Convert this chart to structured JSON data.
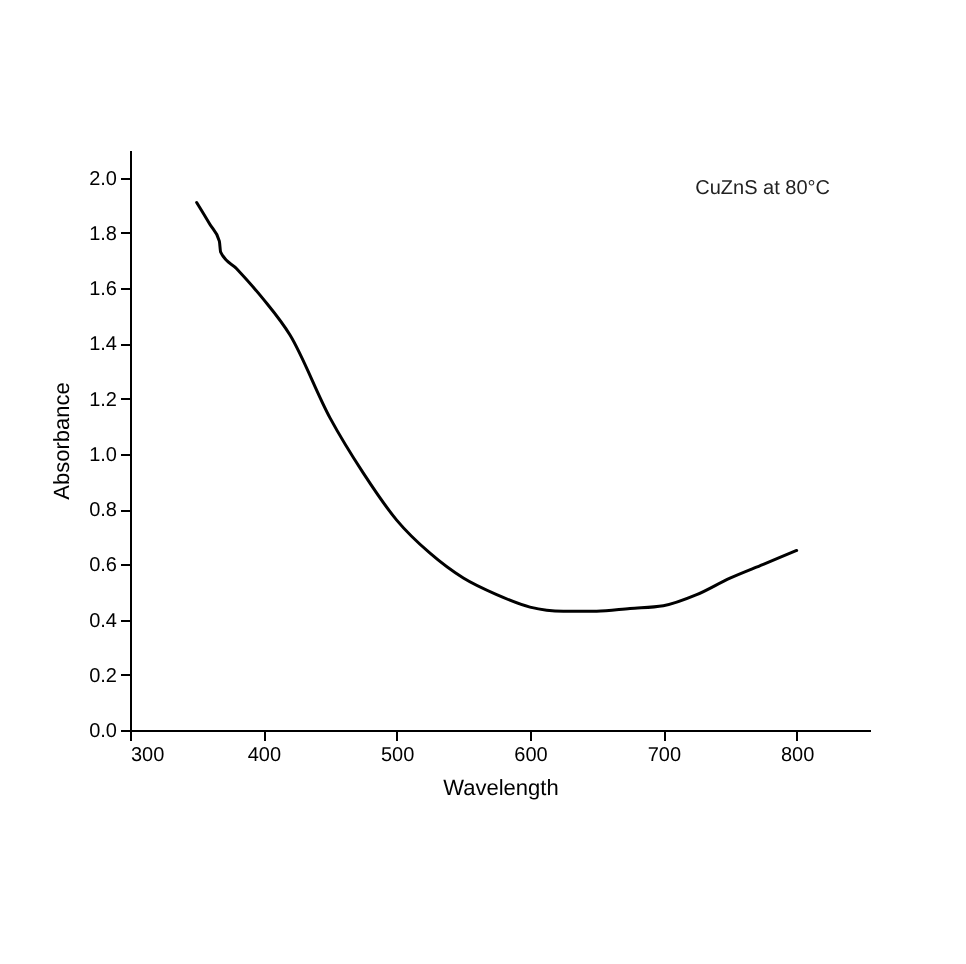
{
  "chart_data": {
    "type": "line",
    "xlabel": "Wavelength",
    "ylabel": "Absorbance",
    "annotations": [
      "CuZnS at 80°C"
    ],
    "x": [
      350,
      360,
      367,
      368,
      380,
      400,
      420,
      450,
      475,
      500,
      525,
      550,
      575,
      600,
      625,
      650,
      675,
      700,
      725,
      750,
      775,
      800
    ],
    "series": [
      {
        "color": "#000000",
        "values": [
          1.91,
          1.83,
          1.77,
          1.73,
          1.67,
          1.56,
          1.43,
          1.13,
          0.93,
          0.76,
          0.64,
          0.55,
          0.49,
          0.445,
          0.43,
          0.43,
          0.44,
          0.45,
          0.49,
          0.55,
          0.6,
          0.65
        ]
      }
    ],
    "xlim": [
      300,
      855
    ],
    "ylim": [
      0,
      2.1
    ],
    "xticks": [
      300,
      400,
      500,
      600,
      700,
      800
    ],
    "yticks": [
      {
        "value": 0,
        "label": "0.0"
      },
      0.2,
      0.4,
      0.6,
      0.8,
      {
        "value": 1,
        "label": "1.0"
      },
      1.2,
      1.4,
      1.6,
      1.8,
      {
        "value": 2,
        "label": "2.0"
      }
    ],
    "grid": false,
    "marker": "none",
    "line_style": "solid"
  }
}
